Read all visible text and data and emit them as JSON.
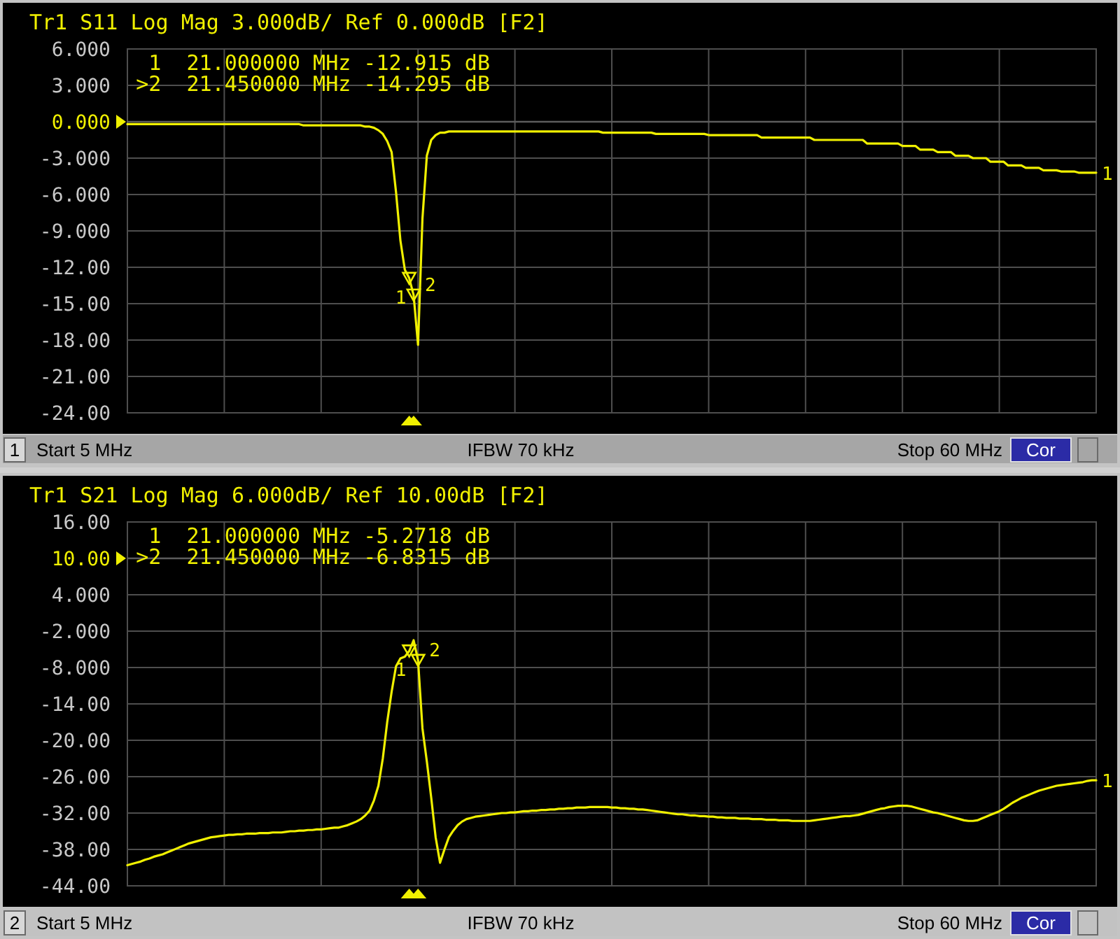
{
  "chart_data": [
    {
      "type": "line",
      "title": "Tr1 S11 Log Mag 3.000dB/ Ref 0.000dB [F2]",
      "categories": [
        null,
        null,
        null,
        null,
        null,
        null,
        null,
        null,
        null,
        null,
        null,
        null,
        null,
        null,
        null,
        null,
        null,
        null,
        null,
        null,
        null,
        null,
        null,
        null,
        null,
        null,
        null,
        null,
        null,
        null,
        null,
        null,
        null,
        null,
        null,
        null,
        null,
        null,
        null,
        null,
        null,
        null,
        null,
        null,
        null,
        null,
        null,
        null,
        null,
        null,
        null,
        null,
        null,
        null,
        null,
        null,
        null,
        null,
        null,
        null,
        null,
        null,
        null,
        null,
        null,
        null,
        null,
        null,
        null,
        null,
        null,
        null,
        null,
        null,
        null,
        null,
        null,
        null,
        null,
        null,
        null,
        null,
        null,
        null,
        null,
        null,
        null,
        null,
        null,
        null,
        null,
        null,
        null,
        null,
        null,
        null,
        null,
        null,
        null,
        null,
        null,
        null,
        null,
        null,
        null,
        null,
        null,
        null,
        null,
        null,
        null,
        null,
        null,
        null,
        null,
        null,
        null,
        null,
        null,
        null,
        null,
        null,
        null,
        null,
        null,
        null,
        null,
        null,
        null,
        null,
        null,
        null,
        null,
        null,
        null,
        null,
        null,
        null,
        null,
        null,
        null,
        null,
        null,
        null,
        null,
        null,
        null,
        null,
        null,
        null,
        null,
        null,
        null,
        null,
        null,
        null,
        null,
        null,
        null,
        null,
        null,
        null,
        null,
        null,
        null,
        null,
        null,
        null,
        null,
        null,
        null,
        null,
        null,
        null,
        null,
        null,
        null,
        null,
        null,
        null,
        null,
        null,
        null,
        null,
        null,
        null,
        null,
        null,
        null,
        null,
        null,
        null,
        null,
        null,
        null,
        null,
        null,
        null,
        null,
        null,
        null,
        null,
        null,
        null,
        null,
        null,
        null,
        null,
        null,
        null,
        null,
        null,
        null,
        null,
        null,
        null,
        null,
        null,
        null,
        null,
        null
      ],
      "series": [
        {
          "name": "1",
          "color": "#f0f000",
          "values": [
            -0.2,
            -0.2,
            -0.2,
            -0.2,
            -0.2,
            -0.2,
            -0.2,
            -0.2,
            -0.2,
            -0.2,
            -0.2,
            -0.2,
            -0.2,
            -0.2,
            -0.2,
            -0.2,
            -0.2,
            -0.2,
            -0.2,
            -0.2,
            -0.2,
            -0.2,
            -0.2,
            -0.2,
            -0.2,
            -0.2,
            -0.2,
            -0.2,
            -0.2,
            -0.2,
            -0.2,
            -0.2,
            -0.2,
            -0.2,
            -0.2,
            -0.2,
            -0.2,
            -0.2,
            -0.2,
            -0.2,
            -0.3,
            -0.3,
            -0.3,
            -0.3,
            -0.3,
            -0.3,
            -0.3,
            -0.3,
            -0.3,
            -0.3,
            -0.3,
            -0.3,
            -0.3,
            -0.3,
            -0.4,
            -0.4,
            -0.5,
            -0.7,
            -1.0,
            -1.6,
            -2.5,
            -5.8,
            -9.8,
            -12.2,
            -12.9,
            -14.3,
            -18.4,
            -8.0,
            -2.8,
            -1.5,
            -1.1,
            -0.9,
            -0.9,
            -0.8,
            -0.8,
            -0.8,
            -0.8,
            -0.8,
            -0.8,
            -0.8,
            -0.8,
            -0.8,
            -0.8,
            -0.8,
            -0.8,
            -0.8,
            -0.8,
            -0.8,
            -0.8,
            -0.8,
            -0.8,
            -0.8,
            -0.8,
            -0.8,
            -0.8,
            -0.8,
            -0.8,
            -0.8,
            -0.8,
            -0.8,
            -0.8,
            -0.8,
            -0.8,
            -0.8,
            -0.8,
            -0.8,
            -0.8,
            -0.8,
            -0.9,
            -0.9,
            -0.9,
            -0.9,
            -0.9,
            -0.9,
            -0.9,
            -0.9,
            -0.9,
            -0.9,
            -0.9,
            -0.9,
            -1.0,
            -1.0,
            -1.0,
            -1.0,
            -1.0,
            -1.0,
            -1.0,
            -1.0,
            -1.0,
            -1.0,
            -1.0,
            -1.0,
            -1.1,
            -1.1,
            -1.1,
            -1.1,
            -1.1,
            -1.1,
            -1.1,
            -1.1,
            -1.1,
            -1.1,
            -1.1,
            -1.1,
            -1.3,
            -1.3,
            -1.3,
            -1.3,
            -1.3,
            -1.3,
            -1.3,
            -1.3,
            -1.3,
            -1.3,
            -1.3,
            -1.3,
            -1.5,
            -1.5,
            -1.5,
            -1.5,
            -1.5,
            -1.5,
            -1.5,
            -1.5,
            -1.5,
            -1.5,
            -1.5,
            -1.5,
            -1.8,
            -1.8,
            -1.8,
            -1.8,
            -1.8,
            -1.8,
            -1.8,
            -1.8,
            -2.0,
            -2.0,
            -2.0,
            -2.0,
            -2.3,
            -2.3,
            -2.3,
            -2.3,
            -2.5,
            -2.5,
            -2.5,
            -2.5,
            -2.8,
            -2.8,
            -2.8,
            -2.8,
            -3.0,
            -3.0,
            -3.0,
            -3.0,
            -3.3,
            -3.3,
            -3.3,
            -3.3,
            -3.6,
            -3.6,
            -3.6,
            -3.6,
            -3.8,
            -3.8,
            -3.8,
            -3.8,
            -4.0,
            -4.0,
            -4.0,
            -4.0,
            -4.1,
            -4.1,
            -4.1,
            -4.1,
            -4.2,
            -4.2,
            -4.2,
            -4.2,
            -4.2
          ]
        },
        {
          "type": "scatter",
          "color": "#f0f000",
          "marker": "triangle",
          "values": [
            null,
            null,
            null,
            null,
            null,
            null,
            null,
            null,
            null,
            null,
            null,
            null,
            null,
            null,
            null,
            null,
            null,
            null,
            null,
            null,
            null,
            null,
            null,
            null,
            null,
            null,
            null,
            null,
            null,
            null,
            null,
            null,
            null,
            null,
            null,
            null,
            null,
            null,
            null,
            null,
            null,
            null,
            null,
            null,
            null,
            null,
            null,
            null,
            null,
            null,
            null,
            null,
            null,
            null,
            null,
            null,
            null,
            null,
            null,
            null,
            null,
            null,
            null,
            null,
            -12.915,
            -14.295,
            null,
            null,
            null,
            null,
            null,
            null,
            null,
            null,
            null,
            null,
            null,
            null,
            null,
            null,
            null,
            null,
            null,
            null,
            null,
            null,
            null,
            null,
            null,
            null,
            null,
            null,
            null,
            null,
            null,
            null,
            null,
            null,
            null,
            null,
            null,
            null,
            null,
            null,
            null,
            null,
            null,
            null,
            null,
            null,
            null,
            null,
            null,
            null,
            null,
            null,
            null,
            null,
            null,
            null,
            null,
            null,
            null,
            null,
            null,
            null,
            null,
            null,
            null,
            null,
            null,
            null,
            null,
            null,
            null,
            null,
            null,
            null,
            null,
            null,
            null,
            null,
            null,
            null,
            null,
            null,
            null,
            null,
            null,
            null,
            null,
            null,
            null,
            null,
            null,
            null,
            null,
            null,
            null,
            null,
            null,
            null,
            null,
            null,
            null,
            null,
            null,
            null,
            null,
            null,
            null,
            null,
            null,
            null,
            null,
            null,
            null,
            null,
            null,
            null,
            null,
            null,
            null,
            null,
            null,
            null,
            null,
            null,
            null,
            null,
            null,
            null,
            null,
            null,
            null,
            null,
            null,
            null,
            null,
            null,
            null,
            null,
            null,
            null,
            null,
            null,
            null,
            null,
            null,
            null,
            null,
            null,
            null,
            null,
            null,
            null,
            null,
            null,
            null,
            null,
            null
          ]
        }
      ],
      "ylim": [
        -24,
        6
      ],
      "yticks": [
        {
          "value": 6,
          "label": "6.000"
        },
        {
          "value": 3,
          "label": "3.000"
        },
        {
          "value": 0,
          "label": "0.000"
        },
        {
          "value": -3,
          "label": "-3.000"
        },
        {
          "value": -6,
          "label": "-6.000"
        },
        {
          "value": -9,
          "label": "-9.000"
        },
        {
          "value": -12,
          "label": "-12.00"
        },
        {
          "value": -15,
          "label": "-15.00"
        },
        {
          "value": -18,
          "label": "-18.00"
        },
        {
          "value": -21,
          "label": "-21.00"
        },
        {
          "value": -24,
          "label": "-24.00"
        }
      ],
      "grid": true,
      "tick_labels": "y",
      "ref_lines": [
        {
          "axis": "y",
          "value": 0
        }
      ],
      "annotations": [
        "1  21.000000 MHz -12.915 dB",
        ">2  21.450000 MHz -14.295 dB",
        "1",
        "Start 5 MHz",
        "IFBW 70 kHz",
        "Stop 60 MHz",
        "Cor",
        "1",
        "2"
      ]
    },
    {
      "type": "line",
      "title": "Tr1 S21 Log Mag 6.000dB/ Ref 10.00dB [F2]",
      "categories": [
        null,
        null,
        null,
        null,
        null,
        null,
        null,
        null,
        null,
        null,
        null,
        null,
        null,
        null,
        null,
        null,
        null,
        null,
        null,
        null,
        null,
        null,
        null,
        null,
        null,
        null,
        null,
        null,
        null,
        null,
        null,
        null,
        null,
        null,
        null,
        null,
        null,
        null,
        null,
        null,
        null,
        null,
        null,
        null,
        null,
        null,
        null,
        null,
        null,
        null,
        null,
        null,
        null,
        null,
        null,
        null,
        null,
        null,
        null,
        null,
        null,
        null,
        null,
        null,
        null,
        null,
        null,
        null,
        null,
        null,
        null,
        null,
        null,
        null,
        null,
        null,
        null,
        null,
        null,
        null,
        null,
        null,
        null,
        null,
        null,
        null,
        null,
        null,
        null,
        null,
        null,
        null,
        null,
        null,
        null,
        null,
        null,
        null,
        null,
        null,
        null,
        null,
        null,
        null,
        null,
        null,
        null,
        null,
        null,
        null,
        null,
        null,
        null,
        null,
        null,
        null,
        null,
        null,
        null,
        null,
        null,
        null,
        null,
        null,
        null,
        null,
        null,
        null,
        null,
        null,
        null,
        null,
        null,
        null,
        null,
        null,
        null,
        null,
        null,
        null,
        null,
        null,
        null,
        null,
        null,
        null,
        null,
        null,
        null,
        null,
        null,
        null,
        null,
        null,
        null,
        null,
        null,
        null,
        null,
        null,
        null,
        null,
        null,
        null,
        null,
        null,
        null,
        null,
        null,
        null,
        null,
        null,
        null,
        null,
        null,
        null,
        null,
        null,
        null,
        null,
        null,
        null,
        null,
        null,
        null,
        null,
        null,
        null,
        null,
        null,
        null,
        null,
        null,
        null,
        null,
        null,
        null,
        null,
        null,
        null,
        null,
        null,
        null,
        null,
        null,
        null,
        null,
        null,
        null,
        null,
        null,
        null,
        null,
        null,
        null,
        null,
        null,
        null,
        null,
        null,
        null
      ],
      "series": [
        {
          "name": "1",
          "color": "#f0f000",
          "values": [
            -40.6,
            -40.4,
            -40.2,
            -40.0,
            -39.7,
            -39.5,
            -39.2,
            -39.0,
            -38.8,
            -38.5,
            -38.2,
            -37.9,
            -37.6,
            -37.3,
            -37.0,
            -36.8,
            -36.6,
            -36.4,
            -36.2,
            -36.0,
            -35.9,
            -35.8,
            -35.7,
            -35.6,
            -35.6,
            -35.5,
            -35.5,
            -35.4,
            -35.4,
            -35.4,
            -35.3,
            -35.3,
            -35.3,
            -35.2,
            -35.2,
            -35.2,
            -35.1,
            -35.0,
            -35.0,
            -34.9,
            -34.9,
            -34.8,
            -34.8,
            -34.7,
            -34.7,
            -34.6,
            -34.5,
            -34.4,
            -34.4,
            -34.2,
            -34.0,
            -33.7,
            -33.4,
            -33.0,
            -32.4,
            -31.6,
            -29.9,
            -27.5,
            -23.0,
            -17.0,
            -12.0,
            -7.8,
            -6.5,
            -6.2,
            -5.3,
            -3.5,
            -6.8,
            -18.0,
            -23.5,
            -29.5,
            -36.0,
            -40.2,
            -38.0,
            -36.0,
            -34.9,
            -34.0,
            -33.4,
            -33.0,
            -32.8,
            -32.6,
            -32.5,
            -32.4,
            -32.3,
            -32.2,
            -32.1,
            -32.0,
            -32.0,
            -31.9,
            -31.9,
            -31.8,
            -31.7,
            -31.7,
            -31.6,
            -31.6,
            -31.5,
            -31.5,
            -31.4,
            -31.4,
            -31.3,
            -31.3,
            -31.2,
            -31.2,
            -31.1,
            -31.1,
            -31.1,
            -31.0,
            -31.0,
            -31.0,
            -31.0,
            -31.0,
            -31.1,
            -31.1,
            -31.2,
            -31.2,
            -31.3,
            -31.3,
            -31.4,
            -31.4,
            -31.5,
            -31.6,
            -31.7,
            -31.8,
            -31.9,
            -32.0,
            -32.1,
            -32.2,
            -32.2,
            -32.3,
            -32.4,
            -32.4,
            -32.5,
            -32.5,
            -32.6,
            -32.6,
            -32.7,
            -32.7,
            -32.8,
            -32.8,
            -32.8,
            -32.9,
            -32.9,
            -32.9,
            -33.0,
            -33.0,
            -33.0,
            -33.1,
            -33.1,
            -33.1,
            -33.2,
            -33.2,
            -33.2,
            -33.3,
            -33.3,
            -33.3,
            -33.3,
            -33.3,
            -33.2,
            -33.1,
            -33.0,
            -32.9,
            -32.8,
            -32.7,
            -32.6,
            -32.5,
            -32.5,
            -32.4,
            -32.3,
            -32.1,
            -31.9,
            -31.7,
            -31.5,
            -31.3,
            -31.2,
            -31.0,
            -30.9,
            -30.8,
            -30.8,
            -30.8,
            -30.9,
            -31.1,
            -31.3,
            -31.5,
            -31.7,
            -31.9,
            -32.0,
            -32.2,
            -32.4,
            -32.6,
            -32.8,
            -33.0,
            -33.2,
            -33.3,
            -33.3,
            -33.2,
            -32.9,
            -32.6,
            -32.3,
            -32.0,
            -31.7,
            -31.3,
            -30.8,
            -30.3,
            -29.9,
            -29.5,
            -29.2,
            -28.9,
            -28.6,
            -28.3,
            -28.1,
            -27.9,
            -27.7,
            -27.5,
            -27.4,
            -27.3,
            -27.2,
            -27.1,
            -27.0,
            -26.9,
            -26.7,
            -26.6,
            -26.6
          ]
        },
        {
          "type": "scatter",
          "color": "#f0f000",
          "marker": "triangle",
          "values": [
            null,
            null,
            null,
            null,
            null,
            null,
            null,
            null,
            null,
            null,
            null,
            null,
            null,
            null,
            null,
            null,
            null,
            null,
            null,
            null,
            null,
            null,
            null,
            null,
            null,
            null,
            null,
            null,
            null,
            null,
            null,
            null,
            null,
            null,
            null,
            null,
            null,
            null,
            null,
            null,
            null,
            null,
            null,
            null,
            null,
            null,
            null,
            null,
            null,
            null,
            null,
            null,
            null,
            null,
            null,
            null,
            null,
            null,
            null,
            null,
            null,
            null,
            null,
            null,
            -5.2718,
            null,
            -6.8315,
            null,
            null,
            null,
            null,
            null,
            null,
            null,
            null,
            null,
            null,
            null,
            null,
            null,
            null,
            null,
            null,
            null,
            null,
            null,
            null,
            null,
            null,
            null,
            null,
            null,
            null,
            null,
            null,
            null,
            null,
            null,
            null,
            null,
            null,
            null,
            null,
            null,
            null,
            null,
            null,
            null,
            null,
            null,
            null,
            null,
            null,
            null,
            null,
            null,
            null,
            null,
            null,
            null,
            null,
            null,
            null,
            null,
            null,
            null,
            null,
            null,
            null,
            null,
            null,
            null,
            null,
            null,
            null,
            null,
            null,
            null,
            null,
            null,
            null,
            null,
            null,
            null,
            null,
            null,
            null,
            null,
            null,
            null,
            null,
            null,
            null,
            null,
            null,
            null,
            null,
            null,
            null,
            null,
            null,
            null,
            null,
            null,
            null,
            null,
            null,
            null,
            null,
            null,
            null,
            null,
            null,
            null,
            null,
            null,
            null,
            null,
            null,
            null,
            null,
            null,
            null,
            null,
            null,
            null,
            null,
            null,
            null,
            null,
            null,
            null,
            null,
            null,
            null,
            null,
            null,
            null,
            null,
            null,
            null,
            null,
            null,
            null,
            null,
            null,
            null,
            null,
            null,
            null,
            null,
            null,
            null,
            null,
            null,
            null,
            null,
            null,
            null,
            null,
            null
          ]
        }
      ],
      "ylim": [
        -44,
        16
      ],
      "yticks": [
        {
          "value": 16,
          "label": "16.00"
        },
        {
          "value": 10,
          "label": "10.00"
        },
        {
          "value": 4,
          "label": "4.000"
        },
        {
          "value": -2,
          "label": "-2.000"
        },
        {
          "value": -8,
          "label": "-8.000"
        },
        {
          "value": -14,
          "label": "-14.00"
        },
        {
          "value": -20,
          "label": "-20.00"
        },
        {
          "value": -26,
          "label": "-26.00"
        },
        {
          "value": -32,
          "label": "-32.00"
        },
        {
          "value": -38,
          "label": "-38.00"
        },
        {
          "value": -44,
          "label": "-44.00"
        }
      ],
      "grid": true,
      "tick_labels": "y",
      "ref_lines": [
        {
          "axis": "y",
          "value": 10
        }
      ],
      "annotations": [
        "1  21.000000 MHz -5.2718 dB",
        ">2  21.450000 MHz -6.8315 dB",
        "2",
        "Start 5 MHz",
        "IFBW 70 kHz",
        "Stop 60 MHz",
        "Cor",
        "1",
        "2"
      ]
    }
  ]
}
